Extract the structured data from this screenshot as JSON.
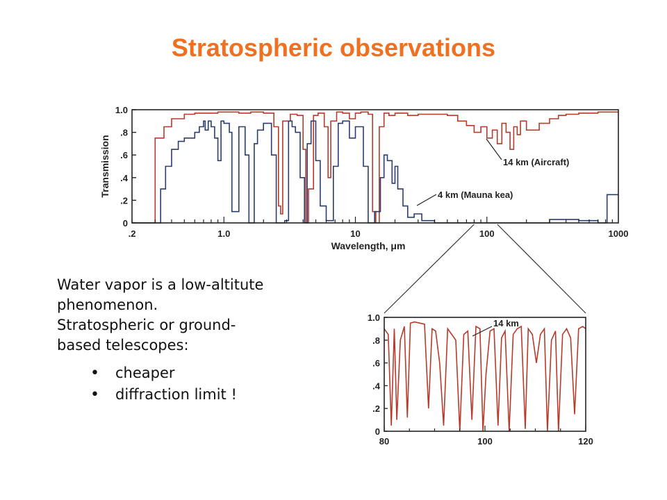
{
  "slide": {
    "title": "Stratospheric observations",
    "paragraph_lines": [
      "Water vapor is a low-altitute",
      "phenomenon.",
      "Stratospheric or ground-",
      "based telescopes:"
    ],
    "bullets": [
      "cheaper",
      "diffraction limit !"
    ]
  },
  "chart_data": [
    {
      "type": "line",
      "xlabel": "Wavelength, μm",
      "ylabel": "Transmission",
      "x_scale": "log",
      "xlim": [
        0.2,
        1000
      ],
      "ylim": [
        0,
        1.0
      ],
      "x_ticks": [
        0.2,
        1.0,
        10,
        100,
        1000
      ],
      "x_tick_labels": [
        ".2",
        "1.0",
        "10",
        "100",
        "1000"
      ],
      "y_ticks": [
        0,
        0.2,
        0.4,
        0.6,
        0.8,
        1.0
      ],
      "y_tick_labels": [
        "0",
        ".2",
        ".4",
        ".6",
        ".8",
        "1.0"
      ],
      "colors": {
        "aircraft": "#b83a2a",
        "mauna_kea": "#2a3d6e",
        "axes": "#222222"
      },
      "series": [
        {
          "name": "14 km (Aircraft)",
          "x": [
            0.2,
            0.28,
            0.3,
            0.35,
            0.4,
            0.5,
            0.6,
            0.7,
            0.9,
            1.1,
            1.3,
            1.6,
            2.0,
            2.4,
            2.6,
            2.7,
            2.8,
            3.2,
            3.6,
            4.0,
            4.2,
            4.4,
            4.8,
            5.2,
            5.8,
            6.2,
            6.5,
            7.2,
            8.0,
            9.0,
            10.0,
            11,
            12.5,
            13.5,
            14.3,
            15.2,
            16.5,
            18,
            20,
            25,
            30,
            40,
            50,
            60,
            70,
            80,
            90,
            100,
            110,
            120,
            130,
            140,
            150,
            160,
            170,
            180,
            200,
            250,
            300,
            350,
            400,
            500,
            600,
            700,
            800,
            1000
          ],
          "y": [
            0.0,
            0.0,
            0.75,
            0.85,
            0.92,
            0.96,
            0.97,
            0.97,
            0.98,
            0.98,
            0.97,
            0.98,
            0.97,
            0.85,
            0.15,
            0.08,
            0.9,
            0.96,
            0.95,
            0.65,
            0.0,
            0.3,
            0.95,
            0.97,
            0.85,
            0.4,
            0.9,
            0.98,
            0.97,
            0.92,
            0.97,
            0.98,
            0.96,
            0.1,
            0.0,
            0.85,
            0.97,
            0.95,
            0.97,
            0.95,
            0.96,
            0.96,
            0.95,
            0.9,
            0.86,
            0.8,
            0.85,
            0.75,
            0.82,
            0.7,
            0.88,
            0.8,
            0.65,
            0.85,
            0.78,
            0.9,
            0.82,
            0.88,
            0.92,
            0.95,
            0.96,
            0.97,
            0.97,
            0.98,
            0.98,
            0.98
          ]
        },
        {
          "name": "4 km (Mauna kea)",
          "x": [
            0.2,
            0.3,
            0.33,
            0.36,
            0.4,
            0.45,
            0.5,
            0.6,
            0.65,
            0.7,
            0.72,
            0.76,
            0.8,
            0.85,
            0.9,
            0.95,
            1.0,
            1.1,
            1.15,
            1.3,
            1.45,
            1.55,
            1.7,
            1.8,
            2.0,
            2.3,
            2.5,
            2.9,
            3.1,
            3.3,
            3.5,
            3.8,
            4.1,
            4.3,
            4.6,
            5.0,
            5.4,
            6.0,
            6.8,
            7.4,
            8.0,
            9.0,
            10.0,
            11.5,
            12.5,
            14.0,
            15.5,
            16.5,
            17.5,
            19,
            20,
            21,
            23,
            25,
            28,
            32,
            40,
            300,
            500,
            700,
            820,
            1000
          ],
          "y": [
            0.0,
            0.0,
            0.3,
            0.5,
            0.65,
            0.72,
            0.75,
            0.8,
            0.85,
            0.9,
            0.82,
            0.9,
            0.85,
            0.75,
            0.55,
            0.9,
            0.88,
            0.8,
            0.1,
            0.85,
            0.6,
            0.0,
            0.7,
            0.82,
            0.88,
            0.6,
            0.0,
            0.02,
            0.9,
            0.85,
            0.8,
            0.4,
            0.0,
            0.7,
            0.9,
            0.55,
            0.15,
            0.02,
            0.5,
            0.88,
            0.9,
            0.75,
            0.85,
            0.5,
            0.0,
            0.1,
            0.4,
            0.6,
            0.55,
            0.35,
            0.5,
            0.3,
            0.15,
            0.05,
            0.08,
            0.02,
            0.0,
            0.03,
            0.02,
            0.0,
            0.25,
            0.25
          ]
        }
      ],
      "annotations": [
        "14 km (Aircraft)",
        "4 km (Mauna kea)"
      ]
    },
    {
      "type": "line",
      "x_scale": "linear",
      "xlim": [
        80,
        120
      ],
      "ylim": [
        0,
        1.0
      ],
      "x_ticks": [
        80,
        100,
        120
      ],
      "x_tick_labels": [
        "80",
        "100",
        "120"
      ],
      "y_ticks": [
        0,
        0.2,
        0.4,
        0.6,
        0.8,
        1.0
      ],
      "y_tick_labels": [
        "0",
        ".2",
        ".4",
        ".6",
        ".8",
        "1.0"
      ],
      "colors": {
        "line": "#b83a2a",
        "axes": "#222222"
      },
      "series": [
        {
          "name": "14 km",
          "x": [
            80,
            80.8,
            81.4,
            82.0,
            82.5,
            83.2,
            84.0,
            84.6,
            85.2,
            86.0,
            87.0,
            88.0,
            88.8,
            89.5,
            90.2,
            91.0,
            91.8,
            92.6,
            93.4,
            94.2,
            95.0,
            95.8,
            96.6,
            97.4,
            98.2,
            99.0,
            99.6,
            100.2,
            101.0,
            101.8,
            102.6,
            103.3,
            104.0,
            104.8,
            105.6,
            106.4,
            107.2,
            108.0,
            108.6,
            109.4,
            110.2,
            111.0,
            111.8,
            112.4,
            113.2,
            114.0,
            114.6,
            115.4,
            116.2,
            117.0,
            117.8,
            118.6,
            119.4,
            120
          ],
          "y": [
            0.9,
            0.85,
            0.05,
            0.9,
            0.1,
            0.8,
            0.92,
            0.12,
            0.95,
            0.96,
            0.95,
            0.94,
            0.2,
            0.9,
            0.88,
            0.6,
            0.05,
            0.9,
            0.85,
            0.8,
            0.0,
            0.85,
            0.88,
            0.1,
            0.92,
            0.9,
            0.0,
            0.5,
            0.88,
            0.9,
            0.05,
            0.82,
            0.88,
            0.0,
            0.85,
            0.9,
            0.92,
            0.02,
            0.9,
            0.85,
            0.6,
            0.85,
            0.9,
            0.0,
            0.8,
            0.88,
            0.0,
            0.85,
            0.9,
            0.82,
            0.15,
            0.9,
            0.92,
            0.9
          ]
        }
      ],
      "annotations": [
        "14 km"
      ]
    }
  ]
}
